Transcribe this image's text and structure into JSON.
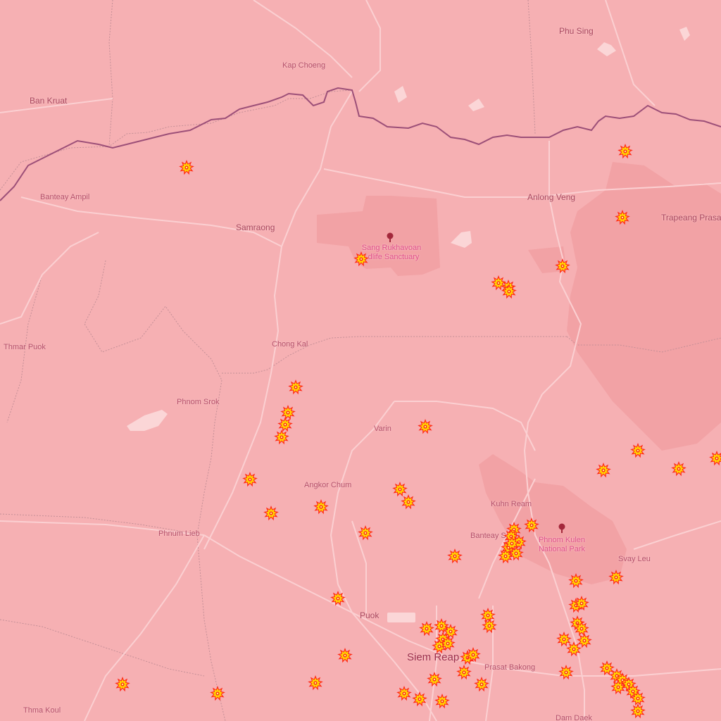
{
  "map": {
    "theme_color": "#f6b0b3",
    "fire_marker_icon": "fire-burst-icon",
    "park_marker_icon": "tree-icon",
    "colors": {
      "fire_outer": "#ff2a1a",
      "fire_mid": "#ffd800",
      "fire_core": "#fff27a",
      "border": "#9c4f78",
      "road": "#fbd0d2",
      "admin": "#b48b92"
    }
  },
  "places": [
    {
      "id": "kap-choeng",
      "name": "Kap Choeng",
      "size": "small"
    },
    {
      "id": "phu-sing",
      "name": "Phu Sing",
      "size": "medium"
    },
    {
      "id": "ban-kruat",
      "name": "Ban Kruat",
      "size": "medium"
    },
    {
      "id": "banteay-ampil",
      "name": "Banteay Ampil",
      "size": "small"
    },
    {
      "id": "samraong",
      "name": "Samraong",
      "size": "medium"
    },
    {
      "id": "anlong-veng",
      "name": "Anlong Veng",
      "size": "medium"
    },
    {
      "id": "trapeang-prasat",
      "name": "Trapeang Prasat",
      "size": "medium"
    },
    {
      "id": "thmar-puok",
      "name": "Thmar Puok",
      "size": "small"
    },
    {
      "id": "chong-kal",
      "name": "Chong Kal",
      "size": "small"
    },
    {
      "id": "phnom-srok",
      "name": "Phnom Srok",
      "size": "small"
    },
    {
      "id": "varin",
      "name": "Varin",
      "size": "small"
    },
    {
      "id": "angkor-chum",
      "name": "Angkor Chum",
      "size": "small"
    },
    {
      "id": "kuhn-ream",
      "name": "Kuhn Ream",
      "size": "small"
    },
    {
      "id": "banteay-srei",
      "name": "Banteay S",
      "size": "small"
    },
    {
      "id": "phnum-lieb",
      "name": "Phnum Lieb",
      "size": "small"
    },
    {
      "id": "svay-leu",
      "name": "Svay Leu",
      "size": "small"
    },
    {
      "id": "puok",
      "name": "Puok",
      "size": "medium"
    },
    {
      "id": "siem-reap",
      "name": "Siem Reap",
      "size": "large"
    },
    {
      "id": "prasat-bakong",
      "name": "Prasat Bakong",
      "size": "small"
    },
    {
      "id": "thma-koul",
      "name": "Thma Koul",
      "size": "small"
    },
    {
      "id": "dam-daek",
      "name": "Dam Daek",
      "size": "small"
    }
  ],
  "parks": [
    {
      "id": "sang-rukhavoan",
      "name_line1": "Sang Rukhavoan",
      "name_line2": "..dlife Sanctuary"
    },
    {
      "id": "phnom-kulen",
      "name_line1": "Phnom Kulen",
      "name_line2": "National Park"
    }
  ]
}
